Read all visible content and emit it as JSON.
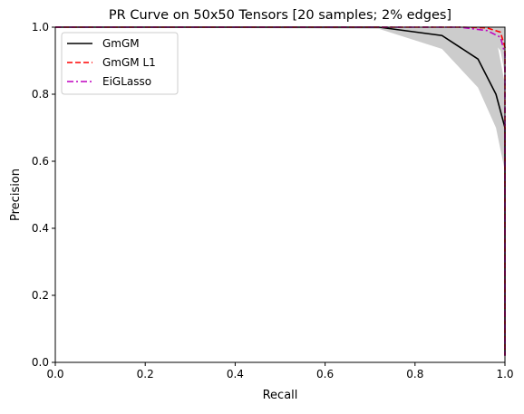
{
  "chart_data": {
    "type": "line",
    "title": "PR Curve on 50x50 Tensors [20 samples; 2% edges]",
    "xlabel": "Recall",
    "ylabel": "Precision",
    "xlim": [
      0,
      1
    ],
    "ylim": [
      0,
      1
    ],
    "xticks": [
      "0.0",
      "0.2",
      "0.4",
      "0.6",
      "0.8",
      "1.0"
    ],
    "yticks": [
      "0.0",
      "0.2",
      "0.4",
      "0.6",
      "0.8",
      "1.0"
    ],
    "grid": false,
    "legend_position": "top-left",
    "series": [
      {
        "name": "GmGM",
        "color": "#000000",
        "style": "solid",
        "x": [
          0,
          0.72,
          0.86,
          0.94,
          0.98,
          1.0
        ],
        "y": [
          1.0,
          1.0,
          0.975,
          0.905,
          0.8,
          0.7
        ],
        "band_upper": [
          1.0,
          1.0,
          1.0,
          1.0,
          0.97,
          0.83
        ],
        "band_lower": [
          1.0,
          0.995,
          0.935,
          0.82,
          0.7,
          0.57
        ]
      },
      {
        "name": "GmGM L1",
        "color": "#ff0000",
        "style": "dashed",
        "x": [
          0,
          0.9,
          0.96,
          0.99,
          1.0
        ],
        "y": [
          1.0,
          1.0,
          0.998,
          0.985,
          0.94
        ],
        "band_upper": [
          1.0,
          1.0,
          1.0,
          1.0,
          1.0
        ],
        "band_lower": [
          1.0,
          1.0,
          0.99,
          0.96,
          0.9
        ]
      },
      {
        "name": "EiGLasso",
        "color": "#bf00bf",
        "style": "dashdot",
        "x": [
          0,
          0.9,
          0.96,
          0.99,
          1.0
        ],
        "y": [
          1.0,
          1.0,
          0.99,
          0.97,
          0.92
        ],
        "band_upper": [
          1.0,
          1.0,
          1.0,
          1.0,
          1.0
        ],
        "band_lower": [
          1.0,
          1.0,
          0.98,
          0.93,
          0.86
        ]
      }
    ],
    "band_color": "#cccccc",
    "final_drop_to": 0.02
  }
}
